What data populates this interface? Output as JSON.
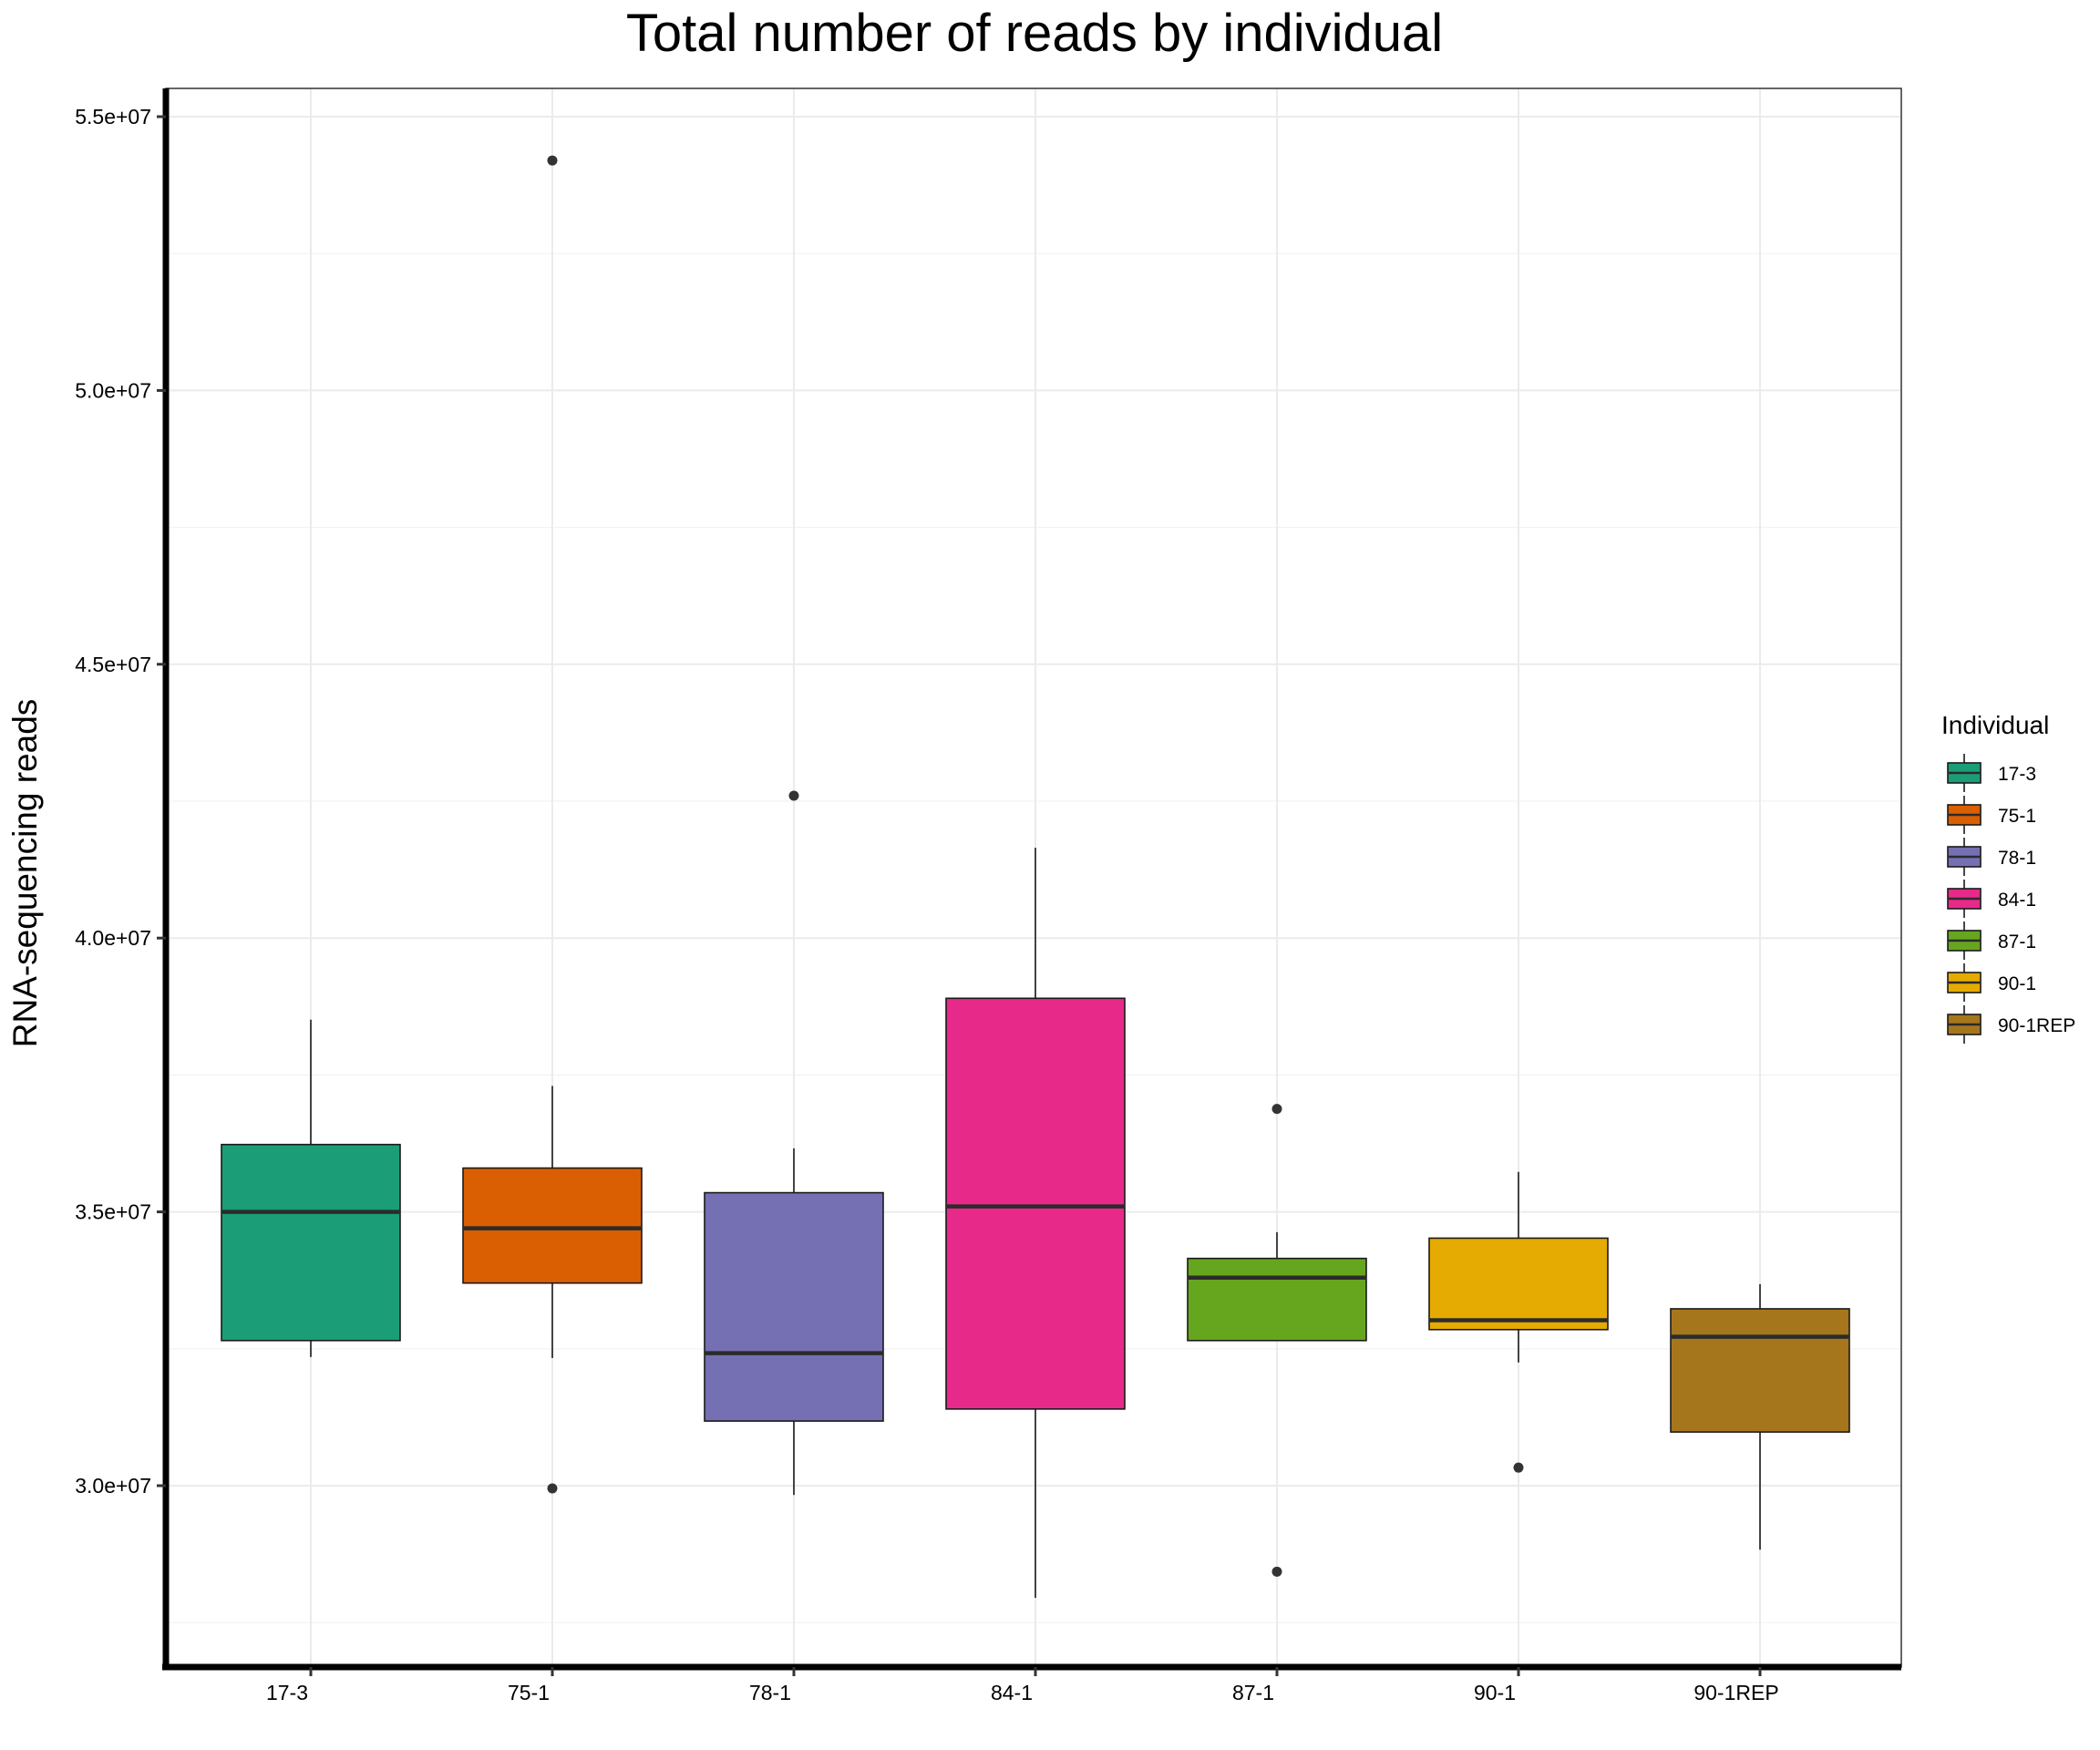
{
  "chart_data": {
    "type": "box",
    "title": "Total number of reads by individual",
    "xlabel": "",
    "ylabel": "RNA-sequencing reads",
    "ylim": [
      26700000,
      55500000
    ],
    "yticks": [
      {
        "value": 30000000,
        "label": "3.0e+07"
      },
      {
        "value": 35000000,
        "label": "3.5e+07"
      },
      {
        "value": 40000000,
        "label": "4.0e+07"
      },
      {
        "value": 45000000,
        "label": "4.5e+07"
      },
      {
        "value": 50000000,
        "label": "5.0e+07"
      },
      {
        "value": 55000000,
        "label": "5.5e+07"
      }
    ],
    "categories": [
      "17-3",
      "75-1",
      "78-1",
      "84-1",
      "87-1",
      "90-1",
      "90-1REP"
    ],
    "boxes": [
      {
        "name": "17-3",
        "color": "#1b9e77",
        "whisker_low": 32350000,
        "q1": 32650000,
        "median": 35000000,
        "q3": 36230000,
        "whisker_high": 38510000,
        "outliers": []
      },
      {
        "name": "75-1",
        "color": "#d95f02",
        "whisker_low": 32330000,
        "q1": 33700000,
        "median": 34700000,
        "q3": 35800000,
        "whisker_high": 37300000,
        "outliers": [
          54200000,
          29950000
        ]
      },
      {
        "name": "78-1",
        "color": "#7570b3",
        "whisker_low": 29830000,
        "q1": 31180000,
        "median": 32420000,
        "q3": 35350000,
        "whisker_high": 36160000,
        "outliers": [
          42600000
        ]
      },
      {
        "name": "84-1",
        "color": "#e7298a",
        "whisker_low": 27950000,
        "q1": 31400000,
        "median": 35100000,
        "q3": 38900000,
        "whisker_high": 41650000,
        "outliers": []
      },
      {
        "name": "87-1",
        "color": "#66a61e",
        "whisker_low": 32650000,
        "q1": 32650000,
        "median": 33800000,
        "q3": 34150000,
        "whisker_high": 34630000,
        "outliers": [
          36880000,
          28430000
        ]
      },
      {
        "name": "90-1",
        "color": "#e6ab02",
        "whisker_low": 32250000,
        "q1": 32850000,
        "median": 33020000,
        "q3": 34520000,
        "whisker_high": 35730000,
        "outliers": [
          30330000
        ]
      },
      {
        "name": "90-1REP",
        "color": "#a6761d",
        "whisker_low": 28830000,
        "q1": 30980000,
        "median": 32720000,
        "q3": 33230000,
        "whisker_high": 33680000,
        "outliers": []
      }
    ],
    "grid": true,
    "legend": {
      "title": "Individual",
      "position": "right"
    }
  }
}
